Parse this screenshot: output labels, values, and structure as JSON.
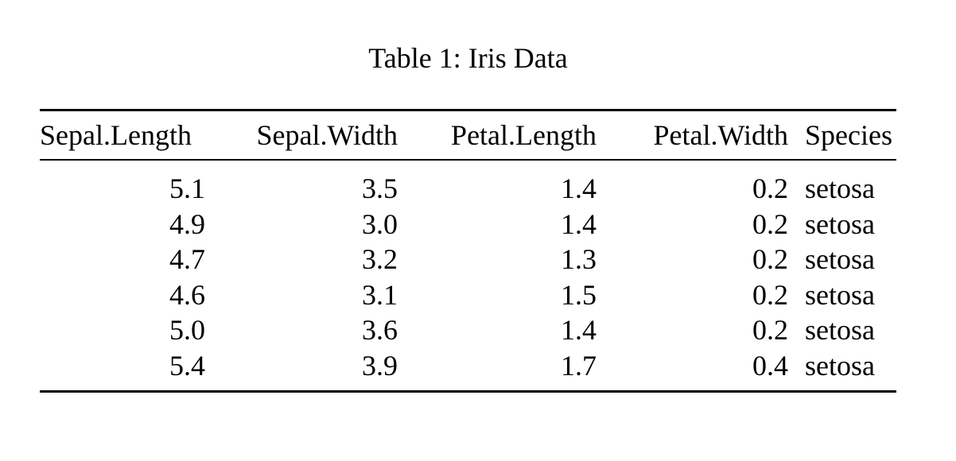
{
  "caption": {
    "text": "Table 1: Iris Data"
  },
  "table": {
    "columns": [
      "Sepal.Length",
      "Sepal.Width",
      "Petal.Length",
      "Petal.Width",
      "Species"
    ],
    "rows": [
      [
        "5.1",
        "3.5",
        "1.4",
        "0.2",
        "setosa"
      ],
      [
        "4.9",
        "3.0",
        "1.4",
        "0.2",
        "setosa"
      ],
      [
        "4.7",
        "3.2",
        "1.3",
        "0.2",
        "setosa"
      ],
      [
        "4.6",
        "3.1",
        "1.5",
        "0.2",
        "setosa"
      ],
      [
        "5.0",
        "3.6",
        "1.4",
        "0.2",
        "setosa"
      ],
      [
        "5.4",
        "3.9",
        "1.7",
        "0.4",
        "setosa"
      ]
    ]
  },
  "colors": {
    "text": "#000000",
    "background": "#ffffff",
    "rule": "#000000"
  }
}
